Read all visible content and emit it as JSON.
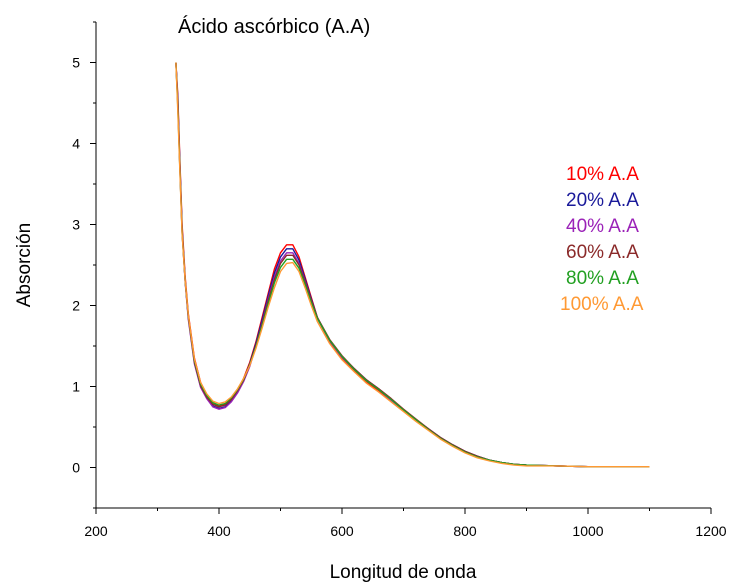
{
  "chart_data": {
    "type": "line",
    "title": "Ácido ascórbico (A.A)",
    "xlabel": "Longitud de onda",
    "ylabel": "Absorción",
    "xlim": [
      200,
      1200
    ],
    "ylim": [
      -0.5,
      5.5
    ],
    "x_ticks": [
      200,
      400,
      600,
      800,
      1000,
      1200
    ],
    "y_ticks": [
      0,
      1,
      2,
      3,
      4,
      5
    ],
    "grid": false,
    "legend_position": "right",
    "series": [
      {
        "name": "10% A.A",
        "color": "#ff0000",
        "x": [
          330,
          333,
          336,
          340,
          345,
          350,
          360,
          370,
          380,
          390,
          400,
          410,
          420,
          430,
          440,
          450,
          460,
          470,
          480,
          490,
          500,
          510,
          520,
          530,
          540,
          550,
          560,
          580,
          600,
          620,
          640,
          660,
          680,
          700,
          720,
          740,
          760,
          780,
          800,
          820,
          840,
          860,
          880,
          900,
          950,
          1000,
          1050,
          1100
        ],
        "y": [
          5,
          4.6,
          3.9,
          3.0,
          2.35,
          1.9,
          1.35,
          1.05,
          0.9,
          0.8,
          0.76,
          0.78,
          0.85,
          0.95,
          1.1,
          1.3,
          1.55,
          1.85,
          2.15,
          2.45,
          2.65,
          2.75,
          2.75,
          2.6,
          2.35,
          2.1,
          1.85,
          1.55,
          1.35,
          1.2,
          1.05,
          0.95,
          0.82,
          0.7,
          0.58,
          0.47,
          0.36,
          0.27,
          0.19,
          0.13,
          0.09,
          0.06,
          0.04,
          0.03,
          0.02,
          0.01,
          0.01,
          0.01
        ]
      },
      {
        "name": "20% A.A",
        "color": "#1a1a9a",
        "x": [
          330,
          333,
          336,
          340,
          345,
          350,
          360,
          370,
          380,
          390,
          400,
          410,
          420,
          430,
          440,
          450,
          460,
          470,
          480,
          490,
          500,
          510,
          520,
          530,
          540,
          550,
          560,
          580,
          600,
          620,
          640,
          660,
          680,
          700,
          720,
          740,
          760,
          780,
          800,
          820,
          840,
          860,
          880,
          900,
          950,
          1000,
          1050,
          1100
        ],
        "y": [
          5,
          4.55,
          3.85,
          2.95,
          2.3,
          1.85,
          1.3,
          1.0,
          0.86,
          0.76,
          0.73,
          0.75,
          0.82,
          0.93,
          1.08,
          1.28,
          1.53,
          1.82,
          2.12,
          2.4,
          2.6,
          2.7,
          2.7,
          2.56,
          2.33,
          2.08,
          1.85,
          1.57,
          1.37,
          1.22,
          1.08,
          0.97,
          0.84,
          0.71,
          0.59,
          0.48,
          0.37,
          0.28,
          0.2,
          0.14,
          0.09,
          0.06,
          0.04,
          0.03,
          0.02,
          0.01,
          0.01,
          0.01
        ]
      },
      {
        "name": "40% A.A",
        "color": "#9b22b8",
        "x": [
          330,
          333,
          336,
          340,
          345,
          350,
          360,
          370,
          380,
          390,
          400,
          410,
          420,
          430,
          440,
          450,
          460,
          470,
          480,
          490,
          500,
          510,
          520,
          530,
          540,
          550,
          560,
          580,
          600,
          620,
          640,
          660,
          680,
          700,
          720,
          740,
          760,
          780,
          800,
          820,
          840,
          860,
          880,
          900,
          950,
          1000,
          1050,
          1100
        ],
        "y": [
          5,
          4.5,
          3.8,
          2.9,
          2.28,
          1.83,
          1.28,
          0.99,
          0.85,
          0.75,
          0.72,
          0.74,
          0.81,
          0.92,
          1.06,
          1.25,
          1.5,
          1.78,
          2.08,
          2.35,
          2.55,
          2.65,
          2.65,
          2.52,
          2.3,
          2.06,
          1.84,
          1.56,
          1.36,
          1.21,
          1.07,
          0.96,
          0.83,
          0.7,
          0.58,
          0.47,
          0.36,
          0.27,
          0.19,
          0.13,
          0.09,
          0.06,
          0.04,
          0.03,
          0.02,
          0.01,
          0.01,
          0.01
        ]
      },
      {
        "name": "60% A.A",
        "color": "#8b2a2a",
        "x": [
          330,
          333,
          336,
          340,
          345,
          350,
          360,
          370,
          380,
          390,
          400,
          410,
          420,
          430,
          440,
          450,
          460,
          470,
          480,
          490,
          500,
          510,
          520,
          530,
          540,
          550,
          560,
          580,
          600,
          620,
          640,
          660,
          680,
          700,
          720,
          740,
          760,
          780,
          800,
          820,
          840,
          860,
          880,
          900,
          950,
          1000,
          1050,
          1100
        ],
        "y": [
          5,
          4.5,
          3.82,
          2.92,
          2.3,
          1.86,
          1.3,
          1.01,
          0.87,
          0.78,
          0.75,
          0.77,
          0.84,
          0.95,
          1.08,
          1.27,
          1.5,
          1.77,
          2.06,
          2.32,
          2.52,
          2.62,
          2.62,
          2.5,
          2.29,
          2.06,
          1.85,
          1.58,
          1.38,
          1.22,
          1.08,
          0.97,
          0.85,
          0.72,
          0.6,
          0.48,
          0.37,
          0.28,
          0.2,
          0.14,
          0.09,
          0.06,
          0.04,
          0.03,
          0.02,
          0.01,
          0.01,
          0.01
        ]
      },
      {
        "name": "80% A.A",
        "color": "#22a022",
        "x": [
          330,
          333,
          336,
          340,
          345,
          350,
          360,
          370,
          380,
          390,
          400,
          410,
          420,
          430,
          440,
          450,
          460,
          470,
          480,
          490,
          500,
          510,
          520,
          530,
          540,
          550,
          560,
          580,
          600,
          620,
          640,
          660,
          680,
          700,
          720,
          740,
          760,
          780,
          800,
          820,
          840,
          860,
          880,
          900,
          950,
          1000,
          1050,
          1100
        ],
        "y": [
          5,
          4.45,
          3.78,
          2.9,
          2.3,
          1.87,
          1.32,
          1.03,
          0.89,
          0.8,
          0.77,
          0.79,
          0.86,
          0.96,
          1.09,
          1.27,
          1.49,
          1.75,
          2.02,
          2.28,
          2.47,
          2.57,
          2.57,
          2.46,
          2.26,
          2.04,
          1.84,
          1.57,
          1.37,
          1.21,
          1.07,
          0.96,
          0.84,
          0.71,
          0.59,
          0.47,
          0.36,
          0.27,
          0.19,
          0.13,
          0.09,
          0.06,
          0.04,
          0.03,
          0.02,
          0.01,
          0.01,
          0.01
        ]
      },
      {
        "name": "100% A.A",
        "color": "#ff9933",
        "x": [
          330,
          333,
          336,
          340,
          345,
          350,
          360,
          370,
          380,
          390,
          400,
          410,
          420,
          430,
          440,
          450,
          460,
          470,
          480,
          490,
          500,
          510,
          520,
          530,
          540,
          550,
          560,
          580,
          600,
          620,
          640,
          660,
          680,
          700,
          720,
          740,
          760,
          780,
          800,
          820,
          840,
          860,
          880,
          900,
          950,
          1000,
          1050,
          1100
        ],
        "y": [
          5,
          4.4,
          3.75,
          2.88,
          2.3,
          1.88,
          1.34,
          1.05,
          0.91,
          0.82,
          0.79,
          0.81,
          0.87,
          0.97,
          1.1,
          1.26,
          1.47,
          1.72,
          1.98,
          2.22,
          2.42,
          2.52,
          2.53,
          2.42,
          2.22,
          2.0,
          1.8,
          1.53,
          1.33,
          1.18,
          1.04,
          0.93,
          0.81,
          0.69,
          0.57,
          0.46,
          0.35,
          0.26,
          0.18,
          0.12,
          0.08,
          0.05,
          0.03,
          0.02,
          0.02,
          0.01,
          0.01,
          0.01
        ]
      }
    ]
  }
}
